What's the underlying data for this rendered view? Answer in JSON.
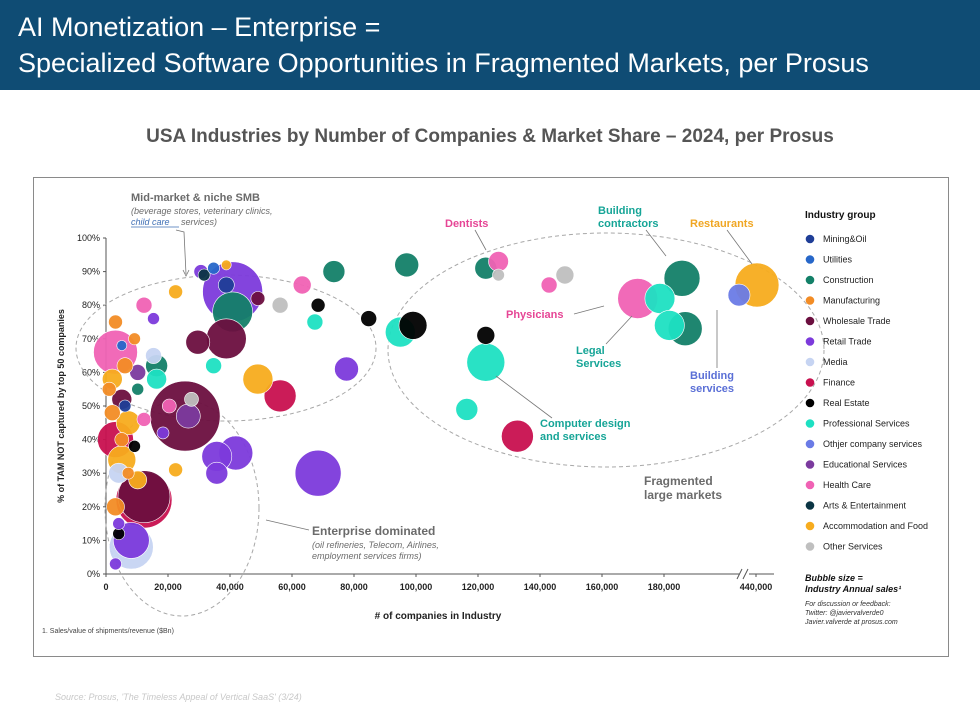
{
  "header": {
    "title_line1": "AI Monetization – Enterprise =",
    "title_line2": "Specialized Software Opportunities in Fragmented Markets, per Prosus"
  },
  "subtitle": "USA Industries by Number of Companies & Market Share – 2024, per Prosus",
  "source": "Source: Prosus, 'The Timeless Appeal of Vertical SaaS' (3/24)",
  "footnote": "1. Sales/value of shipments/revenue ($Bn)",
  "feedback": {
    "line1": "For discussion or feedback:",
    "line2": "Twitter: @javiervalverde0",
    "line3": "Javier.valverde at prosus.com"
  },
  "colors": {
    "Mining&Oil": "#1f3e97",
    "Utilities": "#2767c9",
    "Construction": "#138068",
    "Manufacturing": "#f28c25",
    "Wholesale Trade": "#6b0f3f",
    "Retail Trade": "#7c3adb",
    "Media": "#c6d4f2",
    "Finance": "#c8104f",
    "Real Estate": "#000000",
    "Professional Services": "#1de0c2",
    "Othjer company services": "#6a7be6",
    "Educational Services": "#7b3a9e",
    "Health Care": "#f062b4",
    "Arts & Entertainment": "#0b3544",
    "Accommodation and Food": "#f7ac1e",
    "Other Services": "#bfbfbf"
  },
  "chart_data": {
    "type": "scatter",
    "xlabel": "# of companies in Industry",
    "ylabel": "% of TAM NOT captured by top 50 companies",
    "xlim": [
      0,
      450000
    ],
    "ylim": [
      0,
      100
    ],
    "x_ticks": [
      {
        "v": 0,
        "label": "0"
      },
      {
        "v": 20000,
        "label": "20,000"
      },
      {
        "v": 40000,
        "label": "40,000"
      },
      {
        "v": 60000,
        "label": "60,000"
      },
      {
        "v": 80000,
        "label": "80,000"
      },
      {
        "v": 100000,
        "label": "100,000"
      },
      {
        "v": 120000,
        "label": "120,000"
      },
      {
        "v": 140000,
        "label": "140,000"
      },
      {
        "v": 160000,
        "label": "160,000"
      },
      {
        "v": 180000,
        "label": "180,000"
      },
      {
        "v": 440000,
        "label": "440,000"
      }
    ],
    "y_ticks": [
      {
        "v": 0,
        "label": "0%"
      },
      {
        "v": 10,
        "label": "10%"
      },
      {
        "v": 20,
        "label": "20%"
      },
      {
        "v": 30,
        "label": "30%"
      },
      {
        "v": 40,
        "label": "40%"
      },
      {
        "v": 50,
        "label": "50%"
      },
      {
        "v": 60,
        "label": "60%"
      },
      {
        "v": 70,
        "label": "70%"
      },
      {
        "v": 80,
        "label": "80%"
      },
      {
        "v": 90,
        "label": "90%"
      },
      {
        "v": 100,
        "label": "100%"
      }
    ],
    "legend_title": "Industry group",
    "legend": [
      "Mining&Oil",
      "Utilities",
      "Construction",
      "Manufacturing",
      "Wholesale Trade",
      "Retail Trade",
      "Media",
      "Finance",
      "Real Estate",
      "Professional Services",
      "Othjer company services",
      "Educational Services",
      "Health Care",
      "Arts & Entertainment",
      "Accommodation and Food",
      "Other Services"
    ],
    "size_note_line1": "Bubble size =",
    "size_note_line2": "Industry Annual sales¹",
    "annotations": {
      "midmarket_title": "Mid-market & niche SMB",
      "midmarket_sub1": "(beverage stores, veterinary clinics,",
      "midmarket_sub2a": "child care",
      "midmarket_sub2b": " services)",
      "enterprise_title": "Enterprise dominated",
      "enterprise_sub1": "(oil refineries, Telecom, Airlines,",
      "enterprise_sub2": "employment services firms)",
      "fragmented_line1": "Fragmented",
      "fragmented_line2": "large markets",
      "dentists": "Dentists",
      "building_contractors_line1": "Building",
      "building_contractors_line2": "contractors",
      "restaurants": "Restaurants",
      "physicians": "Physicians",
      "legal_line1": "Legal",
      "legal_line2": "Services",
      "building_services_line1": "Building",
      "building_services_line2": "services",
      "computer_line1": "Computer design",
      "computer_line2": "and services"
    },
    "points": [
      {
        "x": 72000,
        "y": 90,
        "s": 11,
        "g": "Construction"
      },
      {
        "x": 95000,
        "y": 92,
        "s": 12,
        "g": "Construction"
      },
      {
        "x": 120000,
        "y": 91,
        "s": 11,
        "g": "Construction"
      },
      {
        "x": 182000,
        "y": 88,
        "s": 18,
        "g": "Construction"
      },
      {
        "x": 183000,
        "y": 73,
        "s": 17,
        "g": "Construction"
      },
      {
        "x": 40000,
        "y": 78,
        "s": 20,
        "g": "Construction"
      },
      {
        "x": 16000,
        "y": 62,
        "s": 11,
        "g": "Construction"
      },
      {
        "x": 124000,
        "y": 93,
        "s": 10,
        "g": "Health Care"
      },
      {
        "x": 140000,
        "y": 86,
        "s": 8,
        "g": "Health Care"
      },
      {
        "x": 168000,
        "y": 82,
        "s": 20,
        "g": "Health Care"
      },
      {
        "x": 62000,
        "y": 86,
        "s": 9,
        "g": "Health Care"
      },
      {
        "x": 3000,
        "y": 66,
        "s": 22,
        "g": "Health Care"
      },
      {
        "x": 12000,
        "y": 80,
        "s": 8,
        "g": "Health Care"
      },
      {
        "x": 145000,
        "y": 89,
        "s": 9,
        "g": "Other Services"
      },
      {
        "x": 124000,
        "y": 89,
        "s": 6,
        "g": "Other Services"
      },
      {
        "x": 55000,
        "y": 80,
        "s": 8,
        "g": "Other Services"
      },
      {
        "x": 27000,
        "y": 52,
        "s": 7,
        "g": "Other Services"
      },
      {
        "x": 440000,
        "y": 86,
        "s": 22,
        "g": "Accommodation and Food"
      },
      {
        "x": 48000,
        "y": 58,
        "s": 15,
        "g": "Accommodation and Food"
      },
      {
        "x": 22000,
        "y": 84,
        "s": 7,
        "g": "Accommodation and Food"
      },
      {
        "x": 38000,
        "y": 92,
        "s": 5,
        "g": "Accommodation and Food"
      },
      {
        "x": 22000,
        "y": 31,
        "s": 7,
        "g": "Accommodation and Food"
      },
      {
        "x": 10000,
        "y": 28,
        "s": 9,
        "g": "Accommodation and Food"
      },
      {
        "x": 5000,
        "y": 34,
        "s": 14,
        "g": "Accommodation and Food"
      },
      {
        "x": 7000,
        "y": 45,
        "s": 12,
        "g": "Accommodation and Food"
      },
      {
        "x": 2000,
        "y": 58,
        "s": 10,
        "g": "Accommodation and Food"
      },
      {
        "x": 175000,
        "y": 82,
        "s": 15,
        "g": "Professional Services"
      },
      {
        "x": 178000,
        "y": 74,
        "s": 15,
        "g": "Professional Services"
      },
      {
        "x": 93000,
        "y": 72,
        "s": 15,
        "g": "Professional Services"
      },
      {
        "x": 120000,
        "y": 63,
        "s": 19,
        "g": "Professional Services"
      },
      {
        "x": 114000,
        "y": 49,
        "s": 11,
        "g": "Professional Services"
      },
      {
        "x": 66000,
        "y": 75,
        "s": 8,
        "g": "Professional Services"
      },
      {
        "x": 34000,
        "y": 62,
        "s": 8,
        "g": "Professional Services"
      },
      {
        "x": 16000,
        "y": 58,
        "s": 10,
        "g": "Professional Services"
      },
      {
        "x": 200000,
        "y": 83,
        "s": 11,
        "g": "Othjer company services"
      },
      {
        "x": 97000,
        "y": 74,
        "s": 14,
        "g": "Real Estate"
      },
      {
        "x": 120000,
        "y": 71,
        "s": 9,
        "g": "Real Estate"
      },
      {
        "x": 83000,
        "y": 76,
        "s": 8,
        "g": "Real Estate"
      },
      {
        "x": 67000,
        "y": 80,
        "s": 7,
        "g": "Real Estate"
      },
      {
        "x": 4000,
        "y": 12,
        "s": 6,
        "g": "Real Estate"
      },
      {
        "x": 31000,
        "y": 89,
        "s": 6,
        "g": "Arts & Entertainment"
      },
      {
        "x": 130000,
        "y": 41,
        "s": 16,
        "g": "Finance"
      },
      {
        "x": 55000,
        "y": 53,
        "s": 16,
        "g": "Finance"
      },
      {
        "x": 12000,
        "y": 22,
        "s": 28,
        "g": "Finance"
      },
      {
        "x": 3000,
        "y": 40,
        "s": 18,
        "g": "Finance"
      },
      {
        "x": 67000,
        "y": 30,
        "s": 23,
        "g": "Retail Trade"
      },
      {
        "x": 76000,
        "y": 61,
        "s": 12,
        "g": "Retail Trade"
      },
      {
        "x": 41000,
        "y": 36,
        "s": 17,
        "g": "Retail Trade"
      },
      {
        "x": 35000,
        "y": 35,
        "s": 15,
        "g": "Retail Trade"
      },
      {
        "x": 35000,
        "y": 30,
        "s": 11,
        "g": "Retail Trade"
      },
      {
        "x": 30000,
        "y": 90,
        "s": 7,
        "g": "Retail Trade"
      },
      {
        "x": 40000,
        "y": 84,
        "s": 30,
        "g": "Retail Trade"
      },
      {
        "x": 8000,
        "y": 10,
        "s": 18,
        "g": "Retail Trade"
      },
      {
        "x": 25000,
        "y": 47,
        "s": 35,
        "g": "Wholesale Trade"
      },
      {
        "x": 38000,
        "y": 70,
        "s": 20,
        "g": "Wholesale Trade"
      },
      {
        "x": 29000,
        "y": 69,
        "s": 12,
        "g": "Wholesale Trade"
      },
      {
        "x": 12000,
        "y": 23,
        "s": 26,
        "g": "Wholesale Trade"
      },
      {
        "x": 48000,
        "y": 82,
        "s": 7,
        "g": "Wholesale Trade"
      },
      {
        "x": 5000,
        "y": 52,
        "s": 10,
        "g": "Wholesale Trade"
      },
      {
        "x": 26000,
        "y": 47,
        "s": 12,
        "g": "Educational Services"
      },
      {
        "x": 10000,
        "y": 60,
        "s": 8,
        "g": "Educational Services"
      },
      {
        "x": 38000,
        "y": 86,
        "s": 8,
        "g": "Mining&Oil"
      },
      {
        "x": 6000,
        "y": 50,
        "s": 6,
        "g": "Mining&Oil"
      },
      {
        "x": 34000,
        "y": 91,
        "s": 6,
        "g": "Utilities"
      },
      {
        "x": 5000,
        "y": 68,
        "s": 5,
        "g": "Utilities"
      },
      {
        "x": 8000,
        "y": 8,
        "s": 22,
        "g": "Media"
      },
      {
        "x": 15000,
        "y": 65,
        "s": 8,
        "g": "Media"
      },
      {
        "x": 4000,
        "y": 30,
        "s": 10,
        "g": "Media"
      },
      {
        "x": 3000,
        "y": 75,
        "s": 7,
        "g": "Manufacturing"
      },
      {
        "x": 6000,
        "y": 62,
        "s": 8,
        "g": "Manufacturing"
      },
      {
        "x": 2000,
        "y": 48,
        "s": 8,
        "g": "Manufacturing"
      },
      {
        "x": 5000,
        "y": 40,
        "s": 7,
        "g": "Manufacturing"
      },
      {
        "x": 3000,
        "y": 20,
        "s": 9,
        "g": "Manufacturing"
      },
      {
        "x": 9000,
        "y": 70,
        "s": 6,
        "g": "Manufacturing"
      },
      {
        "x": 1000,
        "y": 55,
        "s": 7,
        "g": "Manufacturing"
      },
      {
        "x": 7000,
        "y": 30,
        "s": 6,
        "g": "Manufacturing"
      },
      {
        "x": 12000,
        "y": 46,
        "s": 7,
        "g": "Health Care"
      },
      {
        "x": 20000,
        "y": 50,
        "s": 7,
        "g": "Health Care"
      },
      {
        "x": 15000,
        "y": 76,
        "s": 6,
        "g": "Retail Trade"
      },
      {
        "x": 18000,
        "y": 42,
        "s": 6,
        "g": "Retail Trade"
      },
      {
        "x": 4000,
        "y": 15,
        "s": 6,
        "g": "Retail Trade"
      },
      {
        "x": 9000,
        "y": 38,
        "s": 6,
        "g": "Real Estate"
      },
      {
        "x": 10000,
        "y": 55,
        "s": 6,
        "g": "Construction"
      },
      {
        "x": 3000,
        "y": 3,
        "s": 6,
        "g": "Retail Trade"
      }
    ]
  }
}
